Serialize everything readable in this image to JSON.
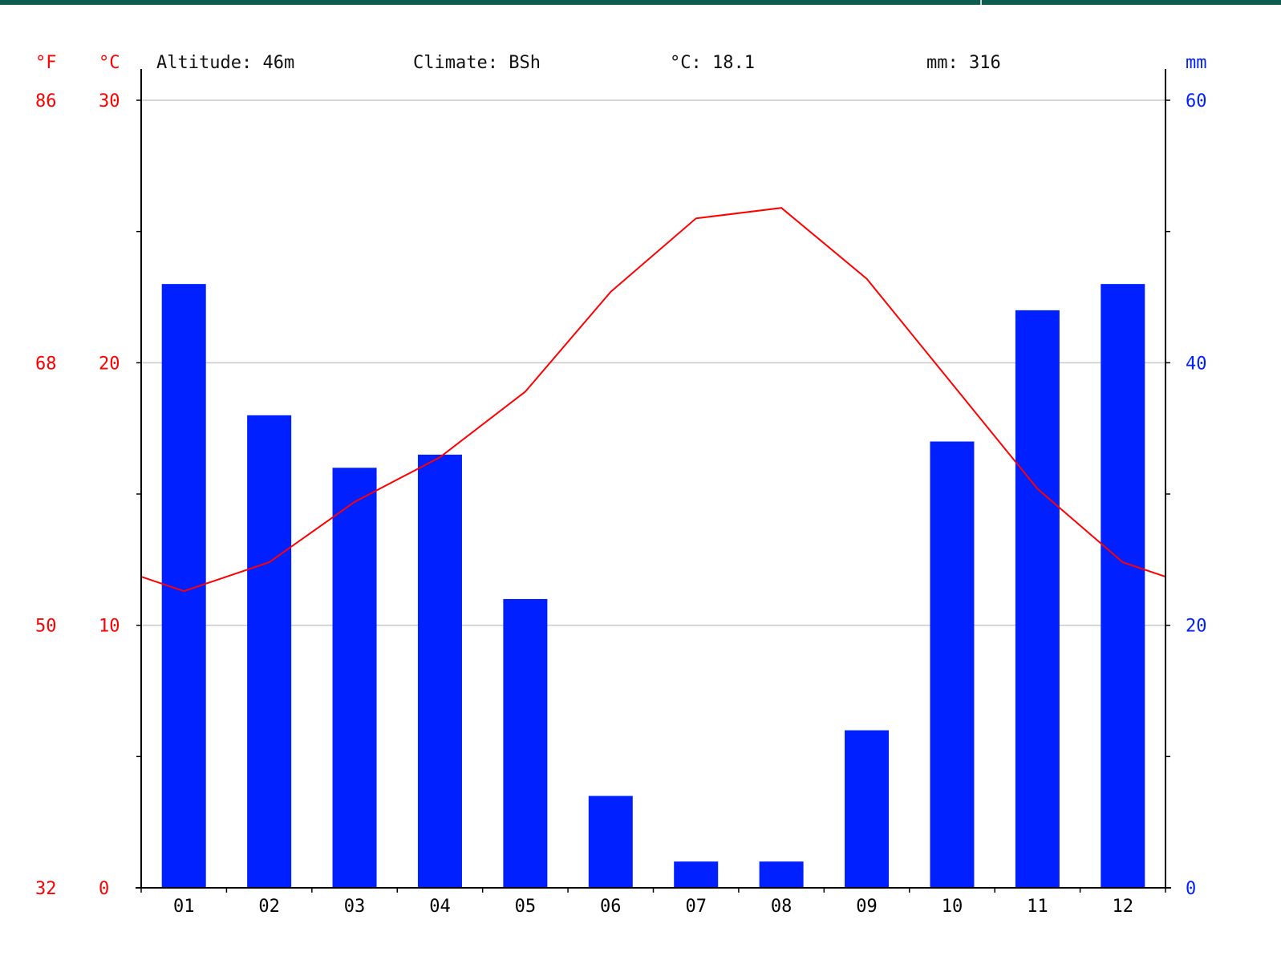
{
  "header": {
    "altitude": "Altitude: 46m",
    "climate": "Climate: BSh",
    "mean_temp": "°C: 18.1",
    "total_precip": "mm: 316"
  },
  "axes": {
    "fahrenheit_label": "°F",
    "celsius_label": "°C",
    "precip_label": "mm"
  },
  "colors": {
    "temperature": "#ff0000",
    "precipitation": "#0020ff",
    "grid": "#c8c8c8",
    "header_bar": "#0e5b4f"
  },
  "chart_data": {
    "type": "bar",
    "categories": [
      "01",
      "02",
      "03",
      "04",
      "05",
      "06",
      "07",
      "08",
      "09",
      "10",
      "11",
      "12"
    ],
    "series": [
      {
        "type": "bar",
        "axis": "right",
        "values": [
          46,
          36,
          32,
          33,
          22,
          7,
          2,
          2,
          12,
          34,
          44,
          46
        ]
      },
      {
        "type": "line",
        "axis": "left",
        "values": [
          11.3,
          12.4,
          14.7,
          16.4,
          18.9,
          22.7,
          25.5,
          25.9,
          23.2,
          19.2,
          15.2,
          12.4
        ]
      }
    ],
    "y_left": {
      "unit": "°C",
      "ylim": [
        0,
        30
      ],
      "ticks": [
        0,
        10,
        20,
        30
      ]
    },
    "y_left_f": {
      "unit": "°F",
      "ticks": [
        32,
        50,
        68,
        86
      ]
    },
    "y_right": {
      "unit": "mm",
      "ylim": [
        0,
        60
      ],
      "ticks": [
        0,
        20,
        40,
        60
      ]
    },
    "grid": true
  }
}
